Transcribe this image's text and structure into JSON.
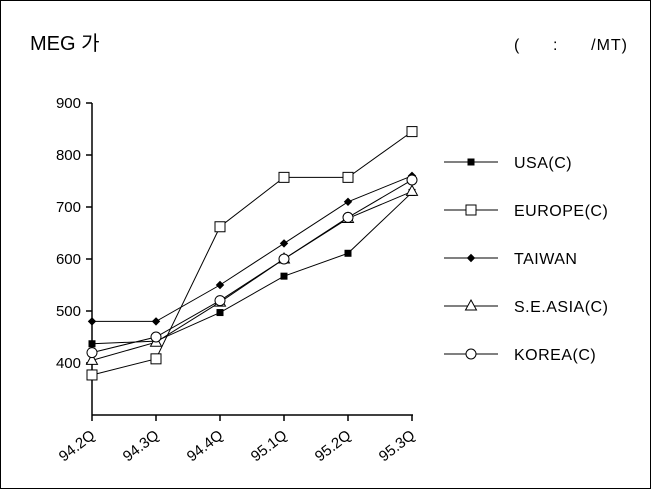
{
  "chart_data": {
    "type": "line",
    "title": "MEG 가",
    "unit_label": "(      :      /MT)",
    "categories": [
      "94.2Q",
      "94.3Q",
      "94.4Q",
      "95.1Q",
      "95.2Q",
      "95.3Q"
    ],
    "ylim": [
      300,
      900
    ],
    "yticks": [
      400,
      500,
      600,
      700,
      800,
      900
    ],
    "grid": false,
    "legend_position": "right",
    "series": [
      {
        "name": "USA(C)",
        "marker": "filled-square",
        "values": [
          437,
          442,
          497,
          567,
          611,
          728
        ]
      },
      {
        "name": "EUROPE(C)",
        "marker": "open-square",
        "values": [
          377,
          408,
          662,
          757,
          757,
          845
        ]
      },
      {
        "name": "TAIWAN",
        "marker": "filled-diamond",
        "values": [
          480,
          480,
          550,
          630,
          710,
          760
        ]
      },
      {
        "name": "S.E.ASIA(C)",
        "marker": "open-triangle",
        "values": [
          405,
          440,
          517,
          600,
          678,
          730
        ]
      },
      {
        "name": "KOREA(C)",
        "marker": "open-circle",
        "values": [
          420,
          450,
          520,
          600,
          680,
          752
        ]
      }
    ]
  }
}
